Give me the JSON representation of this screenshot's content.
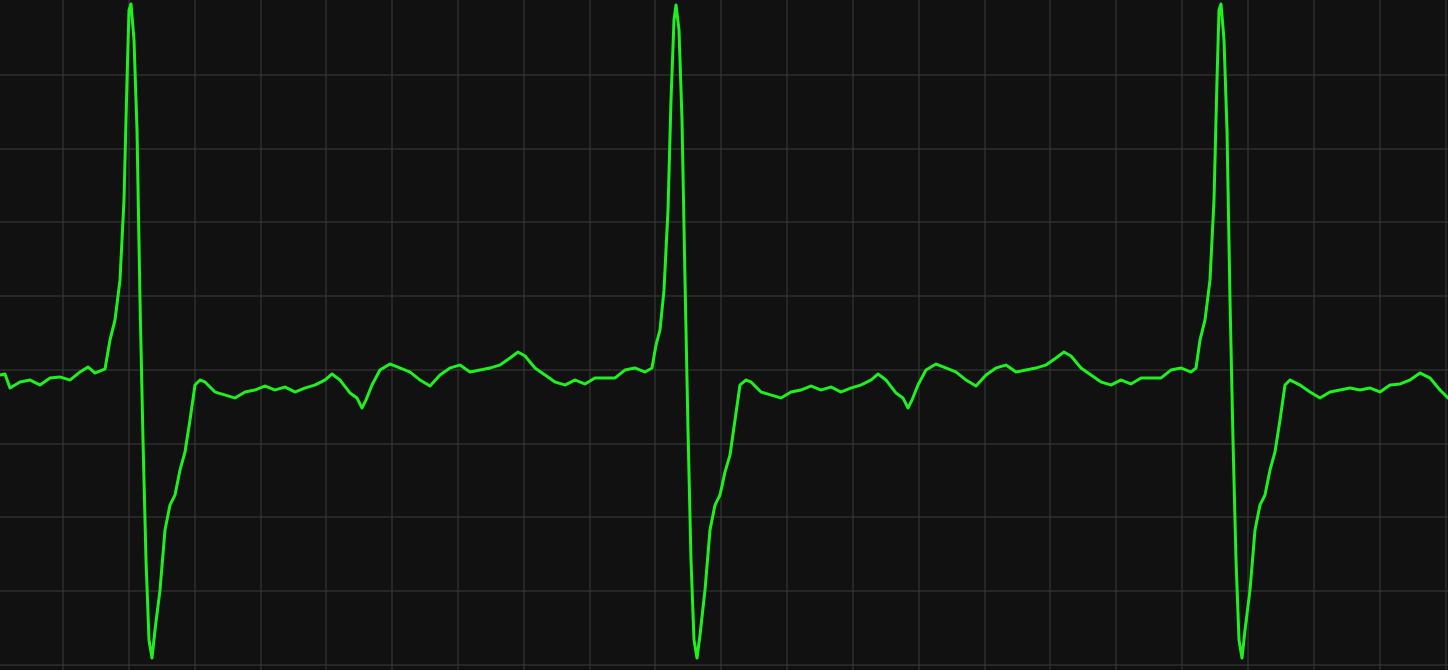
{
  "chart_data": {
    "type": "line",
    "color": "#1ff01f",
    "grid": true,
    "xlim": [
      0,
      1448
    ],
    "ylim": [
      -300,
      370
    ],
    "xticks": [
      63,
      129,
      195,
      261,
      326,
      392,
      458,
      524,
      590,
      655,
      721,
      787,
      853,
      919,
      985,
      1050,
      1116,
      1182,
      1248,
      1314,
      1380,
      1446
    ],
    "yticks": [
      -295,
      -221,
      -147,
      -74,
      0,
      74,
      148,
      221,
      295
    ],
    "x": [
      0,
      5,
      10,
      20,
      30,
      40,
      50,
      60,
      70,
      80,
      88,
      95,
      105,
      110,
      115,
      120,
      124,
      127,
      129,
      131,
      134,
      137,
      140,
      143,
      146,
      149,
      152,
      155,
      160,
      165,
      170,
      175,
      180,
      185,
      190,
      195,
      200,
      205,
      215,
      225,
      235,
      245,
      255,
      265,
      275,
      285,
      295,
      305,
      315,
      325,
      332,
      340,
      350,
      357,
      362,
      366,
      372,
      380,
      390,
      400,
      410,
      420,
      430,
      440,
      450,
      460,
      470,
      480,
      490,
      500,
      510,
      518,
      525,
      535,
      545,
      555,
      565,
      575,
      585,
      595,
      605,
      615,
      625,
      635,
      645,
      652,
      656,
      660,
      664,
      668,
      671,
      674,
      676,
      679,
      682,
      685,
      688,
      691,
      694,
      697,
      700,
      705,
      710,
      715,
      720,
      725,
      730,
      735,
      740,
      746,
      751,
      761,
      771,
      781,
      791,
      801,
      811,
      821,
      831,
      841,
      851,
      861,
      871,
      878,
      886,
      896,
      903,
      908,
      912,
      918,
      926,
      936,
      946,
      956,
      966,
      976,
      986,
      996,
      1006,
      1016,
      1026,
      1036,
      1046,
      1056,
      1064,
      1071,
      1081,
      1091,
      1101,
      1111,
      1121,
      1131,
      1141,
      1151,
      1161,
      1171,
      1181,
      1191,
      1196,
      1200,
      1205,
      1210,
      1214,
      1217,
      1219,
      1221,
      1224,
      1227,
      1230,
      1233,
      1236,
      1239,
      1242,
      1245,
      1250,
      1255,
      1260,
      1265,
      1270,
      1275,
      1280,
      1285,
      1290,
      1300,
      1310,
      1320,
      1330,
      1340,
      1350,
      1360,
      1370,
      1380,
      1390,
      1400,
      1410,
      1420,
      1430,
      1440,
      1448
    ],
    "values": [
      -5,
      -4,
      -18,
      -12,
      -10,
      -15,
      -8,
      -7,
      -10,
      -2,
      3,
      -3,
      1,
      30,
      50,
      90,
      170,
      290,
      360,
      366,
      330,
      240,
      70,
      -70,
      -190,
      -270,
      -288,
      -260,
      -220,
      -160,
      -135,
      -125,
      -100,
      -82,
      -50,
      -15,
      -10,
      -12,
      -22,
      -25,
      -28,
      -22,
      -20,
      -16,
      -20,
      -17,
      -22,
      -18,
      -15,
      -10,
      -4,
      -10,
      -23,
      -28,
      -38,
      -30,
      -15,
      0,
      6,
      2,
      -2,
      -10,
      -16,
      -5,
      2,
      5,
      -2,
      0,
      2,
      5,
      12,
      18,
      14,
      2,
      -5,
      -12,
      -15,
      -10,
      -14,
      -8,
      -8,
      -8,
      0,
      2,
      -2,
      2,
      25,
      40,
      80,
      160,
      270,
      350,
      365,
      340,
      250,
      90,
      -60,
      -190,
      -270,
      -288,
      -265,
      -220,
      -160,
      -135,
      -125,
      -102,
      -85,
      -50,
      -15,
      -10,
      -12,
      -22,
      -25,
      -28,
      -22,
      -20,
      -16,
      -20,
      -17,
      -22,
      -18,
      -15,
      -10,
      -4,
      -10,
      -23,
      -28,
      -38,
      -30,
      -15,
      0,
      6,
      2,
      -2,
      -10,
      -16,
      -5,
      2,
      5,
      -2,
      0,
      2,
      5,
      12,
      18,
      14,
      2,
      -5,
      -12,
      -15,
      -10,
      -14,
      -8,
      -8,
      -8,
      0,
      2,
      -2,
      2,
      30,
      50,
      90,
      170,
      290,
      360,
      366,
      330,
      240,
      70,
      -70,
      -190,
      -270,
      -288,
      -260,
      -220,
      -160,
      -135,
      -125,
      -100,
      -82,
      -50,
      -15,
      -10,
      -15,
      -22,
      -28,
      -22,
      -20,
      -18,
      -20,
      -18,
      -22,
      -15,
      -14,
      -10,
      -3,
      -8,
      -20,
      -28
    ]
  }
}
